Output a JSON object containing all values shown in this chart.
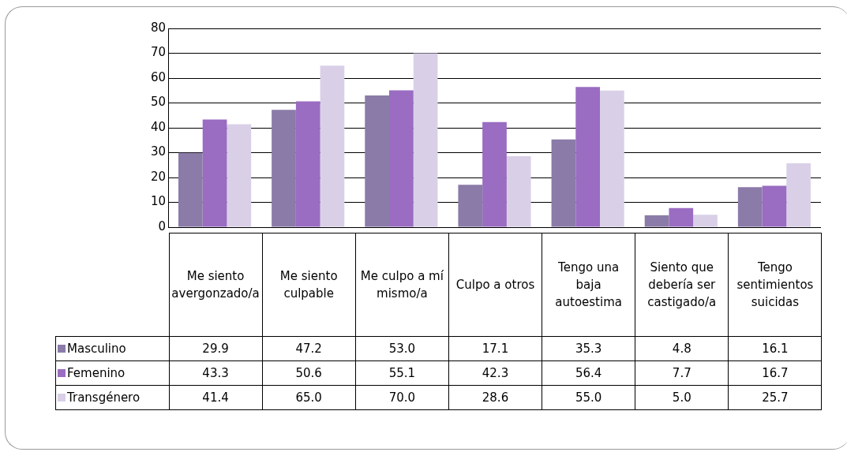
{
  "chart_data": {
    "type": "bar",
    "categories": [
      "Me siento avergonzado/a",
      "Me siento culpable",
      "Me culpo a mí mismo/a",
      "Culpo a otros",
      "Tengo una baja autoestima",
      "Siento que debería ser castigado/a",
      "Tengo sentimientos suicidas"
    ],
    "series": [
      {
        "name": "Masculino",
        "color": "#8b7ba8",
        "values": [
          29.9,
          47.2,
          53.0,
          17.1,
          35.3,
          4.8,
          16.1
        ],
        "value_labels": [
          "29.9",
          "47.2",
          "53.0",
          "17.1",
          "35.3",
          "4.8",
          "16.1"
        ]
      },
      {
        "name": "Femenino",
        "color": "#9a6cc2",
        "values": [
          43.3,
          50.6,
          55.1,
          42.3,
          56.4,
          7.7,
          16.7
        ],
        "value_labels": [
          "43.3",
          "50.6",
          "55.1",
          "42.3",
          "56.4",
          "7.7",
          "16.7"
        ]
      },
      {
        "name": "Transgénero",
        "color": "#d9d0e8",
        "values": [
          41.4,
          65.0,
          70.0,
          28.6,
          55.0,
          5.0,
          25.7
        ],
        "value_labels": [
          "41.4",
          "65.0",
          "70.0",
          "28.6",
          "55.0",
          "5.0",
          "25.7"
        ]
      }
    ],
    "ylim": [
      0,
      80
    ],
    "yticks": [
      0,
      10,
      20,
      30,
      40,
      50,
      60,
      70,
      80
    ],
    "grid": "y",
    "legend": "bottom"
  }
}
